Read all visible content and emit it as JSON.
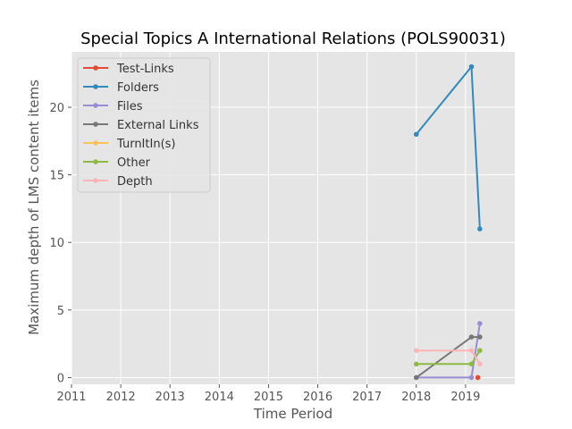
{
  "chart_data": {
    "type": "line",
    "title": "Special Topics A International Relations (POLS90031)",
    "xlabel": "Time Period",
    "ylabel": "Maximum depth of LMS content items",
    "x_tick_labels": [
      "2011",
      "2012",
      "2013",
      "2014",
      "2015",
      "2016",
      "2017",
      "2018",
      "2019"
    ],
    "y_tick_labels": [
      "0",
      "5",
      "10",
      "15",
      "20"
    ],
    "xlim": [
      2011.0,
      2020.0
    ],
    "ylim": [
      -0.5,
      24.1
    ],
    "grid": true,
    "legend_position": "upper-left",
    "series": [
      {
        "name": "Test-Links",
        "color": "#e24a33",
        "points": [
          {
            "x": 2019.25,
            "y": 0
          }
        ]
      },
      {
        "name": "Folders",
        "color": "#348abd",
        "points": [
          {
            "x": 2018.0,
            "y": 18
          },
          {
            "x": 2019.12,
            "y": 23
          },
          {
            "x": 2019.29,
            "y": 11
          }
        ]
      },
      {
        "name": "Files",
        "color": "#988ed5",
        "points": [
          {
            "x": 2018.0,
            "y": 0
          },
          {
            "x": 2019.12,
            "y": 0
          },
          {
            "x": 2019.29,
            "y": 4
          }
        ]
      },
      {
        "name": "External Links",
        "color": "#777777",
        "points": [
          {
            "x": 2018.0,
            "y": 0
          },
          {
            "x": 2019.12,
            "y": 3
          },
          {
            "x": 2019.29,
            "y": 3
          }
        ]
      },
      {
        "name": "TurnItIn(s)",
        "color": "#fbc15e",
        "points": []
      },
      {
        "name": "Other",
        "color": "#8eba42",
        "points": [
          {
            "x": 2018.0,
            "y": 1
          },
          {
            "x": 2019.12,
            "y": 1
          },
          {
            "x": 2019.29,
            "y": 2
          }
        ]
      },
      {
        "name": "Depth",
        "color": "#ffb5b8",
        "points": [
          {
            "x": 2018.0,
            "y": 2
          },
          {
            "x": 2019.12,
            "y": 2
          },
          {
            "x": 2019.29,
            "y": 1
          }
        ]
      }
    ]
  }
}
